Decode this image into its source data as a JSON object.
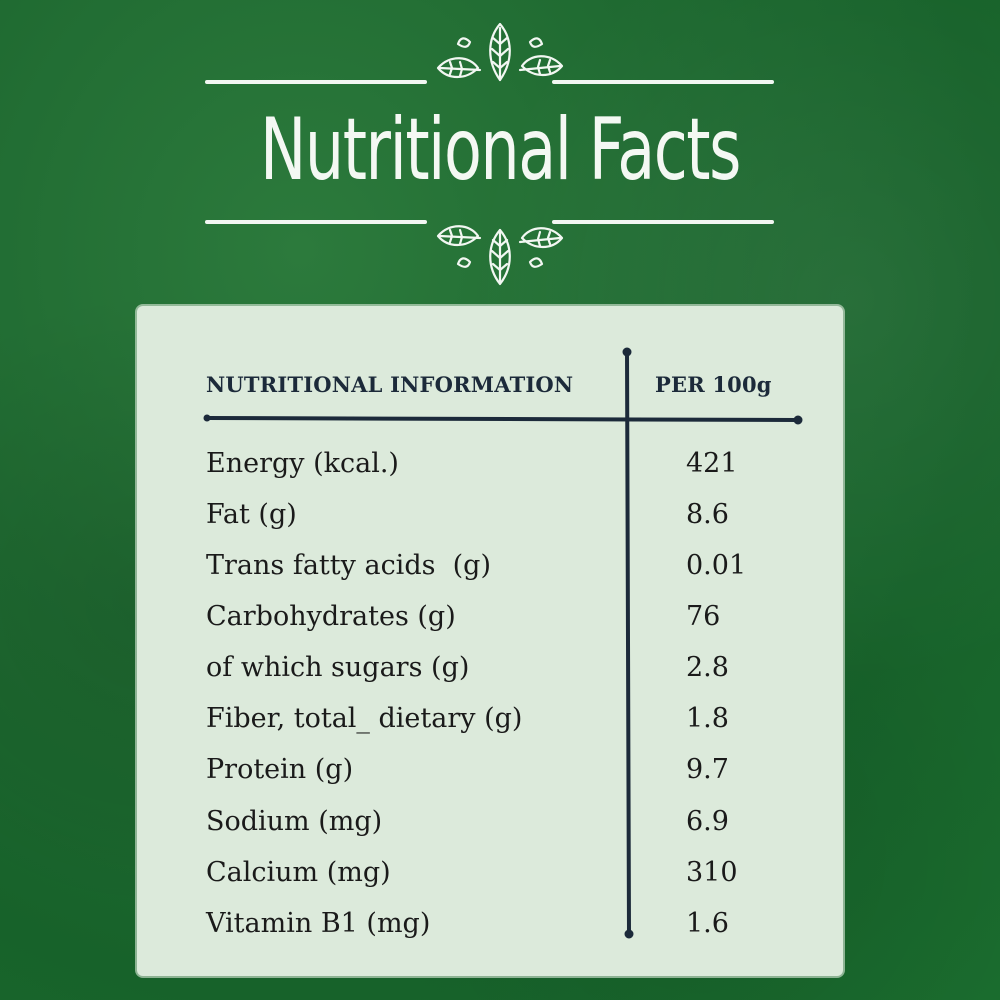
{
  "title": "Nutritional Facts",
  "table": {
    "header_left": "NUTRITIONAL INFORMATION",
    "header_right": "PER 100g",
    "rows": [
      {
        "label": "Energy (kcal.)",
        "value": "421"
      },
      {
        "label": "Fat (g)",
        "value": "8.6"
      },
      {
        "label": "Trans fatty acids  (g)",
        "value": "0.01"
      },
      {
        "label": "Carbohydrates (g)",
        "value": "76"
      },
      {
        "label": "of which sugars (g)",
        "value": "2.8"
      },
      {
        "label": "Fiber, total_ dietary (g)",
        "value": "1.8"
      },
      {
        "label": "Protein (g)",
        "value": "9.7"
      },
      {
        "label": "Sodium (mg)",
        "value": "6.9"
      },
      {
        "label": "Calcium (mg)",
        "value": "310"
      },
      {
        "label": "Vitamin B1 (mg)",
        "value": "1.6"
      }
    ]
  },
  "colors": {
    "background": "#1f6a31",
    "card": "#dceadb",
    "ink": "#1c2a3a",
    "title": "#f4f8f3"
  },
  "icons": {
    "top_ornament": "leaves-icon",
    "bottom_ornament": "leaves-icon"
  }
}
